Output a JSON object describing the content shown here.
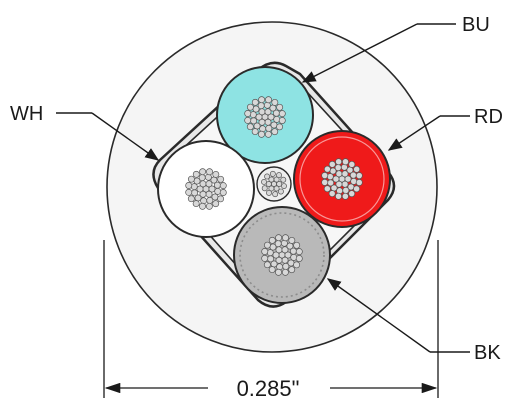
{
  "callouts": {
    "blue": "BU",
    "white": "WH",
    "red": "RD",
    "black": "BK"
  },
  "dimension": {
    "overall_diameter": "0.285\""
  },
  "colors": {
    "jacket": "#f5f5f5",
    "outline": "#2a2a2a",
    "blue_insulation": "#8ee3e3",
    "white_insulation": "#ffffff",
    "red_insulation": "#ef1a1a",
    "black_conductor_fill": "#b9b9b9",
    "strand": "#d0d0d0"
  }
}
